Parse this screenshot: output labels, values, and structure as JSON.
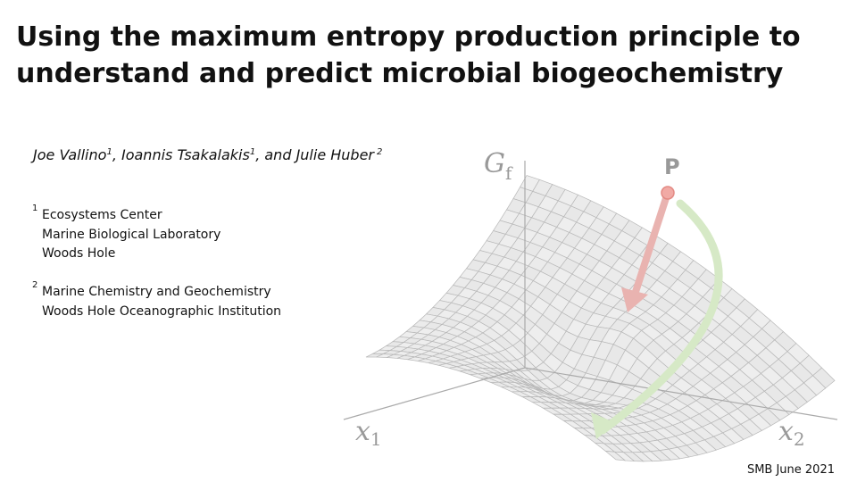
{
  "title": {
    "lines": [
      "Using the maximum entropy production principle to",
      "understand and predict microbial biogeochemistry"
    ]
  },
  "authors": {
    "parts": [
      "Joe Vallino",
      "1",
      ", Ioannis Tsakalakis",
      "1",
      ", and Julie Huber",
      "2"
    ]
  },
  "affiliations": [
    {
      "number": "1",
      "lines": [
        "Ecosystems Center",
        "Marine Biological Laboratory",
        "Woods Hole"
      ]
    },
    {
      "number": "2",
      "lines": [
        "Marine Chemistry and Geochemistry",
        "Woods Hole Oceanographic Institution"
      ]
    }
  ],
  "figure": {
    "vertical_axis": {
      "main": "G",
      "sub": "f"
    },
    "point": "P",
    "axis_1": {
      "main": "x",
      "sub": "1"
    },
    "axis_2": {
      "main": "x",
      "sub": "2"
    }
  },
  "footer": "SMB June 2021"
}
